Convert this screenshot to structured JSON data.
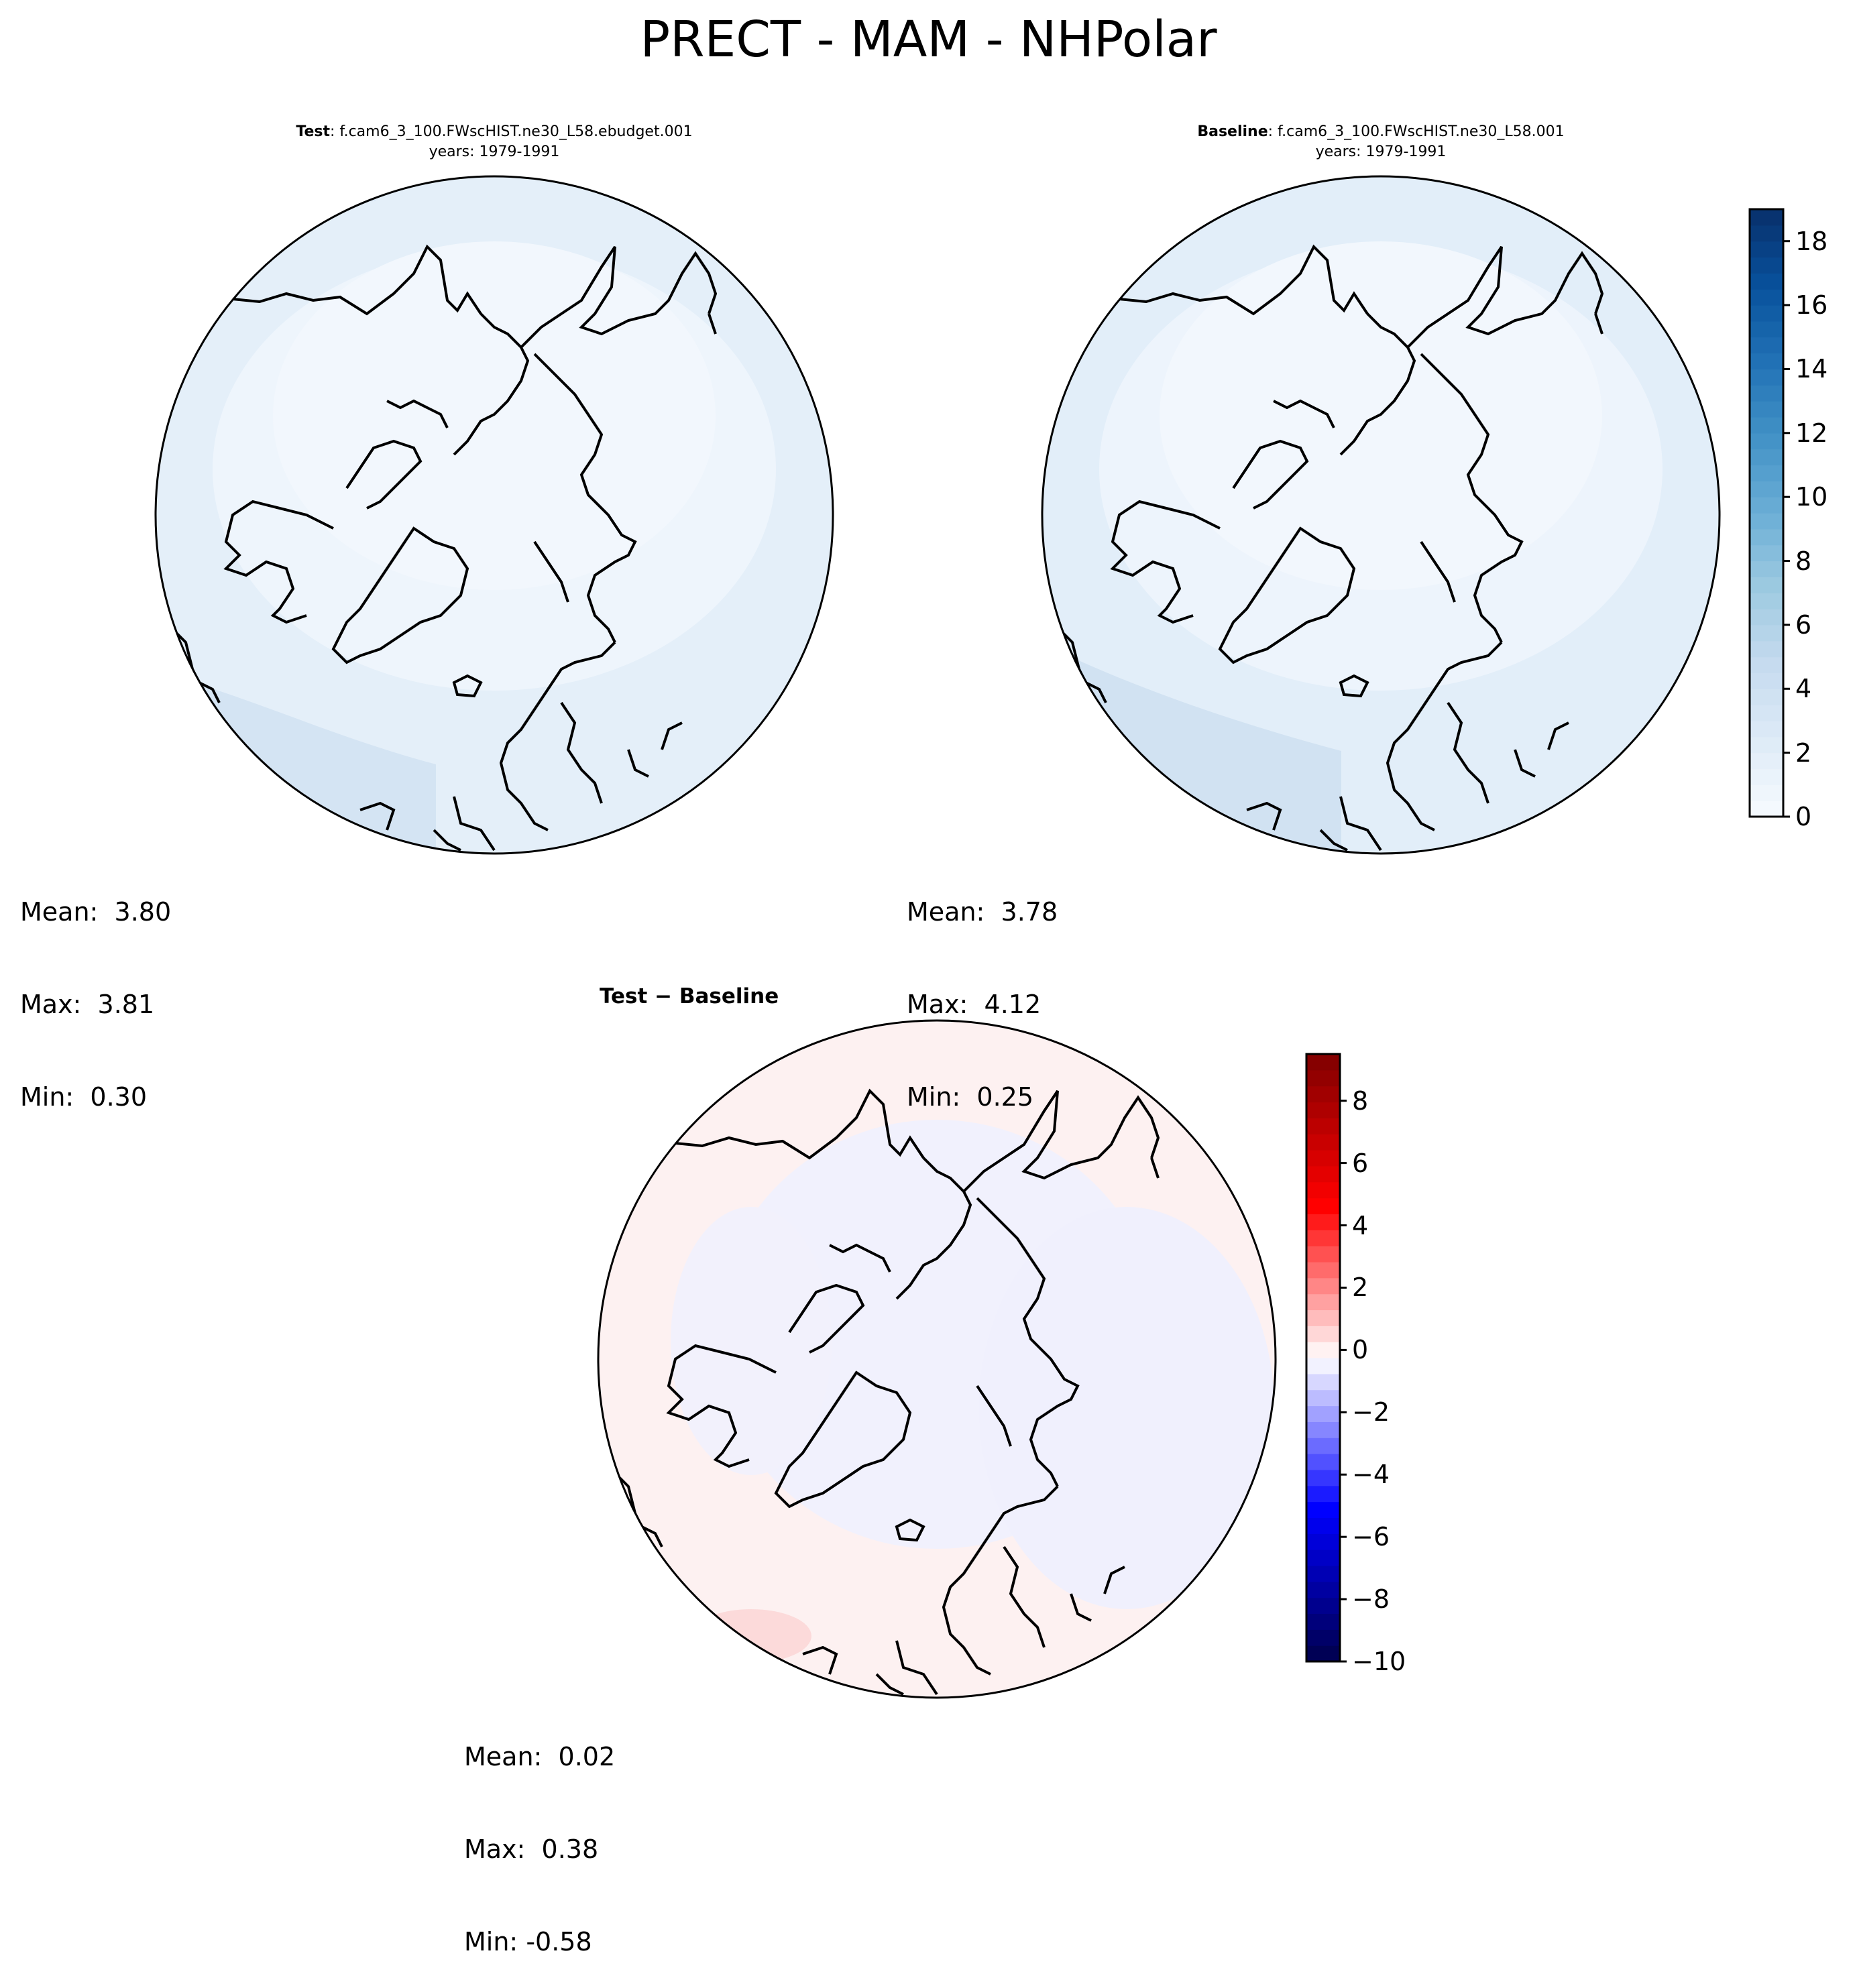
{
  "title": "PRECT - MAM - NHPolar",
  "panels": [
    {
      "key": "test",
      "label_bold": "Test",
      "label_rest": ": f.cam6_3_100.FWscHIST.ne30_L58.ebudget.001",
      "subtitle": "years: 1979-1991",
      "stats": [
        {
          "label": "Mean:",
          "value": "3.80"
        },
        {
          "label": "Max:",
          "value": "3.81"
        },
        {
          "label": "Min:",
          "value": "0.30"
        }
      ]
    },
    {
      "key": "baseline",
      "label_bold": "Baseline",
      "label_rest": ": f.cam6_3_100.FWscHIST.ne30_L58.001",
      "subtitle": "years: 1979-1991",
      "stats": [
        {
          "label": "Mean:",
          "value": "3.78"
        },
        {
          "label": "Max:",
          "value": "4.12"
        },
        {
          "label": "Min:",
          "value": "0.25"
        }
      ]
    },
    {
      "key": "diff",
      "title": "Test − Baseline",
      "stats": [
        {
          "label": "Mean:",
          "value": "0.02"
        },
        {
          "label": "Max:",
          "value": "0.38"
        },
        {
          "label": "Min:",
          "value": "-0.58"
        }
      ]
    }
  ],
  "colorbars": {
    "absolute": {
      "cmap": "Blues",
      "range": [
        0,
        19
      ],
      "ticks": [
        "0",
        "2",
        "4",
        "6",
        "8",
        "10",
        "12",
        "14",
        "16",
        "18"
      ],
      "tick_values": [
        0,
        2,
        4,
        6,
        8,
        10,
        12,
        14,
        16,
        18
      ],
      "colors": [
        "#f7fbff",
        "#deebf7",
        "#c6dbef",
        "#9ecae1",
        "#6baed6",
        "#4292c6",
        "#2171b5",
        "#08519c",
        "#08306b"
      ]
    },
    "difference": {
      "cmap": "seismic",
      "range": [
        -10,
        9.5
      ],
      "ticks": [
        "−10",
        "−8",
        "−6",
        "−4",
        "−2",
        "0",
        "2",
        "4",
        "6",
        "8"
      ],
      "tick_values": [
        -10,
        -8,
        -6,
        -4,
        -2,
        0,
        2,
        4,
        6,
        8
      ],
      "colors": [
        "#00004c",
        "#0000ff",
        "#ffffff",
        "#ff0000",
        "#7f0000"
      ]
    }
  },
  "chart_data": [
    {
      "type": "heatmap",
      "title": "Test: f.cam6_3_100.FWscHIST.ne30_L58.ebudget.001",
      "subtitle": "years: 1979-1991",
      "projection": "north polar stereographic",
      "mean": 3.8,
      "max": 3.81,
      "min": 0.3,
      "zlim": [
        0,
        19
      ]
    },
    {
      "type": "heatmap",
      "title": "Baseline: f.cam6_3_100.FWscHIST.ne30_L58.001",
      "subtitle": "years: 1979-1991",
      "projection": "north polar stereographic",
      "mean": 3.78,
      "max": 4.12,
      "min": 0.25,
      "zlim": [
        0,
        19
      ]
    },
    {
      "type": "heatmap",
      "title": "Test − Baseline",
      "projection": "north polar stereographic",
      "mean": 0.02,
      "max": 0.38,
      "min": -0.58,
      "zlim": [
        -10,
        9.5
      ]
    }
  ]
}
